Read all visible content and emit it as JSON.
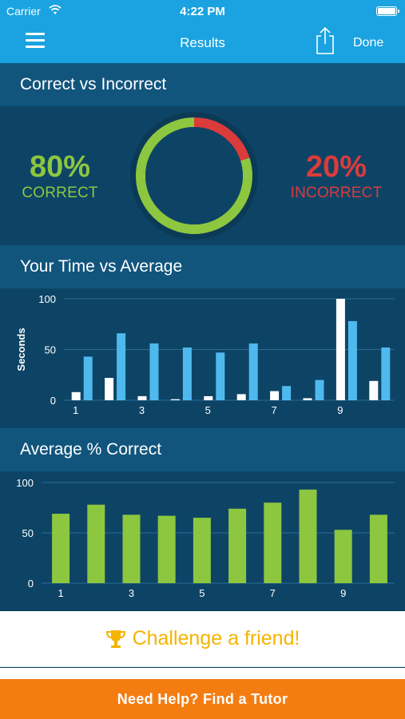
{
  "status": {
    "carrier": "Carrier",
    "time": "4:22 PM"
  },
  "nav": {
    "title": "Results",
    "done_label": "Done"
  },
  "correct_vs_incorrect": {
    "title": "Correct vs Incorrect",
    "correct_value": "80%",
    "correct_label": "CORRECT",
    "incorrect_value": "20%",
    "incorrect_label": "INCORRECT",
    "correct_fraction": 0.8,
    "incorrect_fraction": 0.2
  },
  "time_chart_header": {
    "title": "Your Time vs Average"
  },
  "correct_chart_header": {
    "title": "Average % Correct"
  },
  "chart_data": [
    {
      "type": "bar",
      "ylabel": "Seconds",
      "ylim": [
        0,
        100
      ],
      "yticks": [
        "0",
        "50",
        "100"
      ],
      "xticks": [
        "1",
        "3",
        "5",
        "7",
        "9"
      ],
      "x": [
        1,
        2,
        3,
        4,
        5,
        6,
        7,
        8,
        9,
        10
      ],
      "series": [
        {
          "values": [
            8,
            22,
            4,
            1,
            4,
            6,
            9,
            2,
            100,
            19
          ],
          "color": "#ffffff"
        },
        {
          "values": [
            43,
            66,
            56,
            52,
            47,
            56,
            14,
            20,
            78,
            52
          ],
          "color": "#4fb9ee"
        }
      ]
    },
    {
      "type": "bar",
      "ylim": [
        0,
        100
      ],
      "yticks": [
        "0",
        "50",
        "100"
      ],
      "xticks": [
        "1",
        "3",
        "5",
        "7",
        "9"
      ],
      "x": [
        1,
        2,
        3,
        4,
        5,
        6,
        7,
        8,
        9,
        10
      ],
      "values": [
        69,
        78,
        68,
        67,
        65,
        74,
        80,
        93,
        53,
        68
      ],
      "color": "#8dc63f"
    }
  ],
  "challenge": {
    "label": "Challenge a friend!"
  },
  "tutor": {
    "label": "Need Help?  Find a Tutor"
  },
  "colors": {
    "nav": "#1aa3e0",
    "accent_orange": "#f47d12",
    "trophy": "#f4b400"
  }
}
